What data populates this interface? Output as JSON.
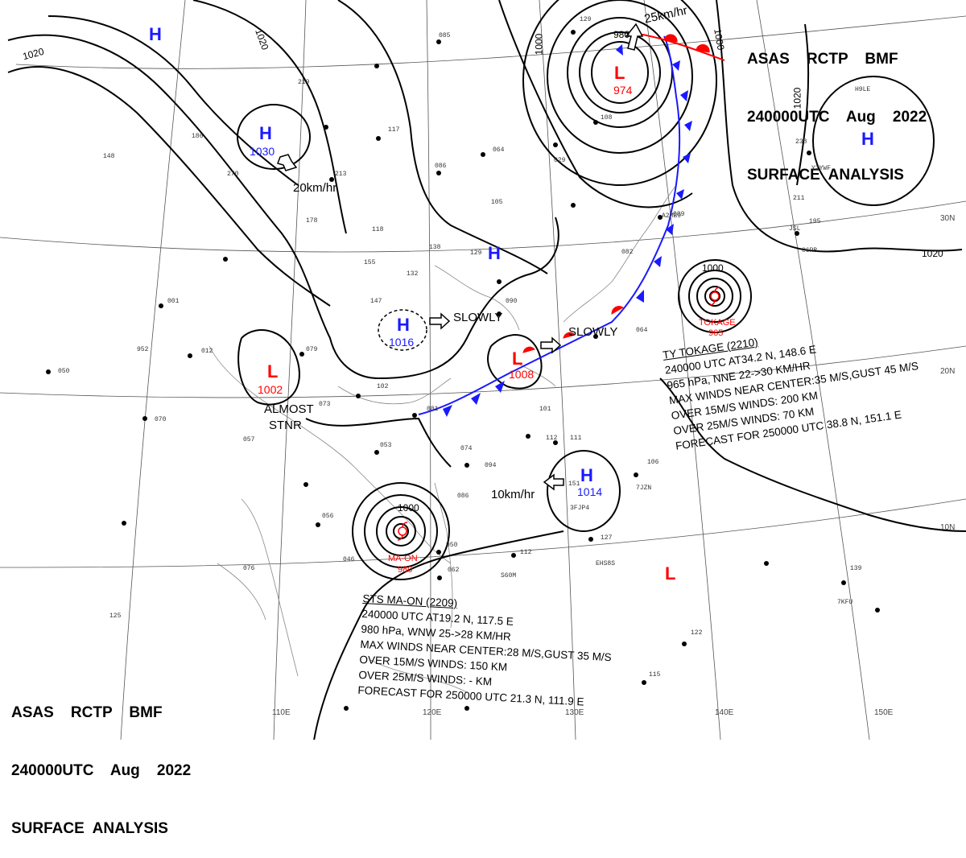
{
  "header_top_right": {
    "line1": "ASAS    RCTP    BMF",
    "line2": "240000UTC    Aug    2022",
    "line3": "SURFACE  ANALYSIS"
  },
  "header_bottom_left": {
    "line1": "ASAS    RCTP    BMF",
    "line2": "240000UTC    Aug    2022",
    "line3": "SURFACE  ANALYSIS"
  },
  "pressure_systems": [
    {
      "type": "H",
      "pressure": "",
      "color": "#1a1aff"
    },
    {
      "type": "H",
      "pressure": "1030",
      "color": "#1a1aff"
    },
    {
      "type": "H",
      "pressure": "",
      "color": "#1a1aff"
    },
    {
      "type": "H",
      "pressure": "1016",
      "color": "#1a1aff"
    },
    {
      "type": "H",
      "pressure": "1014",
      "color": "#1a1aff"
    },
    {
      "type": "H",
      "pressure": "",
      "color": "#1a1aff"
    },
    {
      "type": "L",
      "pressure": "1002",
      "color": "#ff0000"
    },
    {
      "type": "L",
      "pressure": "1008",
      "color": "#ff0000"
    },
    {
      "type": "L",
      "pressure": "974",
      "color": "#ff0000"
    },
    {
      "type": "L",
      "pressure": "",
      "color": "#ff0000"
    }
  ],
  "isobar_labels": [
    "1020",
    "1020",
    "1000",
    "1000",
    "1020",
    "1020",
    "1000",
    "1000",
    "980"
  ],
  "tropical_names": {
    "tokage": "TOKAGE",
    "tokage_pressure": "965",
    "maon": "MA-ON",
    "maon_pressure": "980"
  },
  "movements": {
    "h1030": "20km/hr",
    "h1016": "SLOWLY",
    "l1008": "SLOWLY",
    "h1014": "10km/hr",
    "l974": "25km/hr",
    "l1002": "ALMOST",
    "l1002_2": "STNR"
  },
  "tokage_advisory": {
    "line1": "TY  TOKAGE  (2210)",
    "line2": "240000 UTC  AT34.2 N, 148.6 E",
    "line3": "965 hPa, NNE  22->30 KM/HR",
    "line4": "MAX WINDS NEAR CENTER:35 M/S,GUST 45 M/S",
    "line5": "OVER 15M/S WINDS: 200 KM",
    "line6": "OVER 25M/S WINDS: 70 KM",
    "line7": "FORECAST FOR 250000 UTC 38.8 N, 151.1 E"
  },
  "maon_advisory": {
    "line1": "STS  MA-ON  (2209)",
    "line2": "240000 UTC  AT19.2 N, 117.5 E",
    "line3": "980 hPa, WNW  25->28 KM/HR",
    "line4": "MAX WINDS NEAR CENTER:28 M/S,GUST 35 M/S",
    "line5": "OVER 15M/S WINDS: 150 KM",
    "line6": "OVER 25M/S WINDS: - KM",
    "line7": "FORECAST FOR 250000 UTC 21.3 N, 111.9 E"
  },
  "lon_ticks": [
    "110E",
    "120E",
    "130E",
    "140E",
    "150E"
  ],
  "lat_ticks": [
    "30N",
    "20N",
    "10N"
  ],
  "stations": [
    "270",
    "219",
    "148",
    "186",
    "064",
    "086",
    "105",
    "118",
    "138",
    "129",
    "132",
    "155",
    "147",
    "001",
    "012",
    "079",
    "952",
    "050",
    "070",
    "102",
    "073",
    "057",
    "053",
    "074",
    "094",
    "081",
    "101",
    "112",
    "111",
    "106",
    "151",
    "127",
    "112",
    "086",
    "056",
    "046",
    "076",
    "050",
    "062",
    "125",
    "139",
    "115",
    "122",
    "090",
    "064",
    "082",
    "089",
    "211",
    "195",
    "238",
    "213",
    "178",
    "117",
    "085",
    "129",
    "029",
    "108"
  ],
  "station_ids": [
    "Y2YWF",
    "H9LE",
    "C6PB",
    "JSL",
    "3FJP4",
    "7JZN",
    "EHS8S",
    "S60M",
    "7KFU",
    "A2MB9"
  ],
  "colors": {
    "high": "#1a1aff",
    "low": "#ff0000",
    "front": "#1a1aff",
    "warm_front": "#ff0000"
  }
}
